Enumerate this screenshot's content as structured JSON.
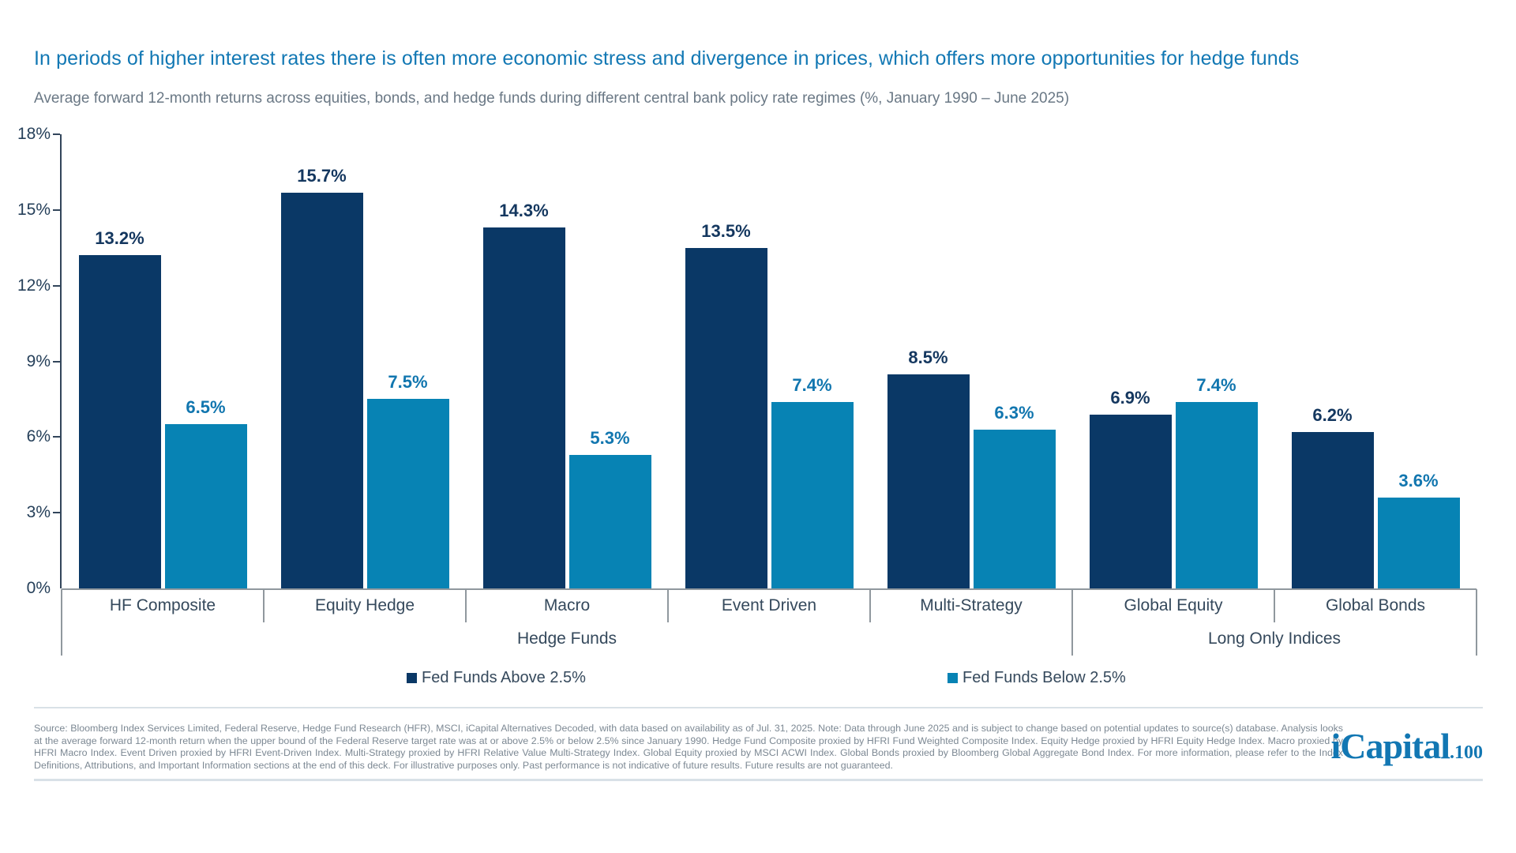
{
  "title": "In periods of higher interest rates there is often more economic stress and divergence in prices, which offers more opportunities for hedge funds",
  "subtitle": "Average forward 12-month returns across equities, bonds, and hedge funds during different central bank policy rate regimes (%, January 1990 – June 2025)",
  "chart_data": {
    "type": "bar",
    "categories": [
      "HF Composite",
      "Equity Hedge",
      "Macro",
      "Event Driven",
      "Multi-Strategy",
      "Global Equity",
      "Global Bonds"
    ],
    "series": [
      {
        "name": "Fed Funds Above 2.5%",
        "color": "#0A3866",
        "label_color": "#14375F",
        "values": [
          13.2,
          15.7,
          14.3,
          13.5,
          8.5,
          6.9,
          6.2
        ]
      },
      {
        "name": "Fed Funds Below 2.5%",
        "color": "#0783B4",
        "label_color": "#1176AF",
        "values": [
          6.5,
          7.5,
          5.3,
          7.4,
          6.3,
          7.4,
          3.6
        ]
      }
    ],
    "category_groups": [
      {
        "label": "Hedge Funds",
        "span": 5
      },
      {
        "label": "Long Only Indices",
        "span": 2
      }
    ],
    "y_ticks": [
      "18%",
      "15%",
      "12%",
      "9%",
      "6%",
      "3%",
      "0%"
    ],
    "ylim": [
      0,
      18
    ],
    "xlabel": "",
    "ylabel": "",
    "grid": false,
    "legend_position": "bottom",
    "value_label_suffix": "%"
  },
  "footer": {
    "source_text": "Source: Bloomberg Index Services Limited, Federal Reserve, Hedge Fund Research (HFR), MSCI, iCapital Alternatives Decoded, with data based on availability as of Jul. 31, 2025. Note: Data through June 2025 and is subject to change based on potential updates to source(s) database. Analysis looks at the average forward 12-month return when the upper bound of the Federal Reserve target rate was at or above 2.5% or below 2.5% since January 1990. Hedge Fund Composite proxied by HFRI Fund Weighted Composite Index. Equity Hedge proxied by HFRI Equity Hedge Index. Macro proxied by HFRI Macro Index. Event Driven proxied by HFRI Event-Driven Index. Multi-Strategy proxied by HFRI Relative Value Multi-Strategy Index. Global Equity proxied by MSCI ACWI Index. Global Bonds proxied by Bloomberg Global Aggregate Bond Index. For more information, please refer to the Index Definitions, Attributions, and Important Information sections at the end of this deck. For illustrative purposes only. Past performance is not indicative of future results. Future results are not guaranteed."
  },
  "logo": {
    "brand": "iCapital",
    "suffix": ".100"
  }
}
